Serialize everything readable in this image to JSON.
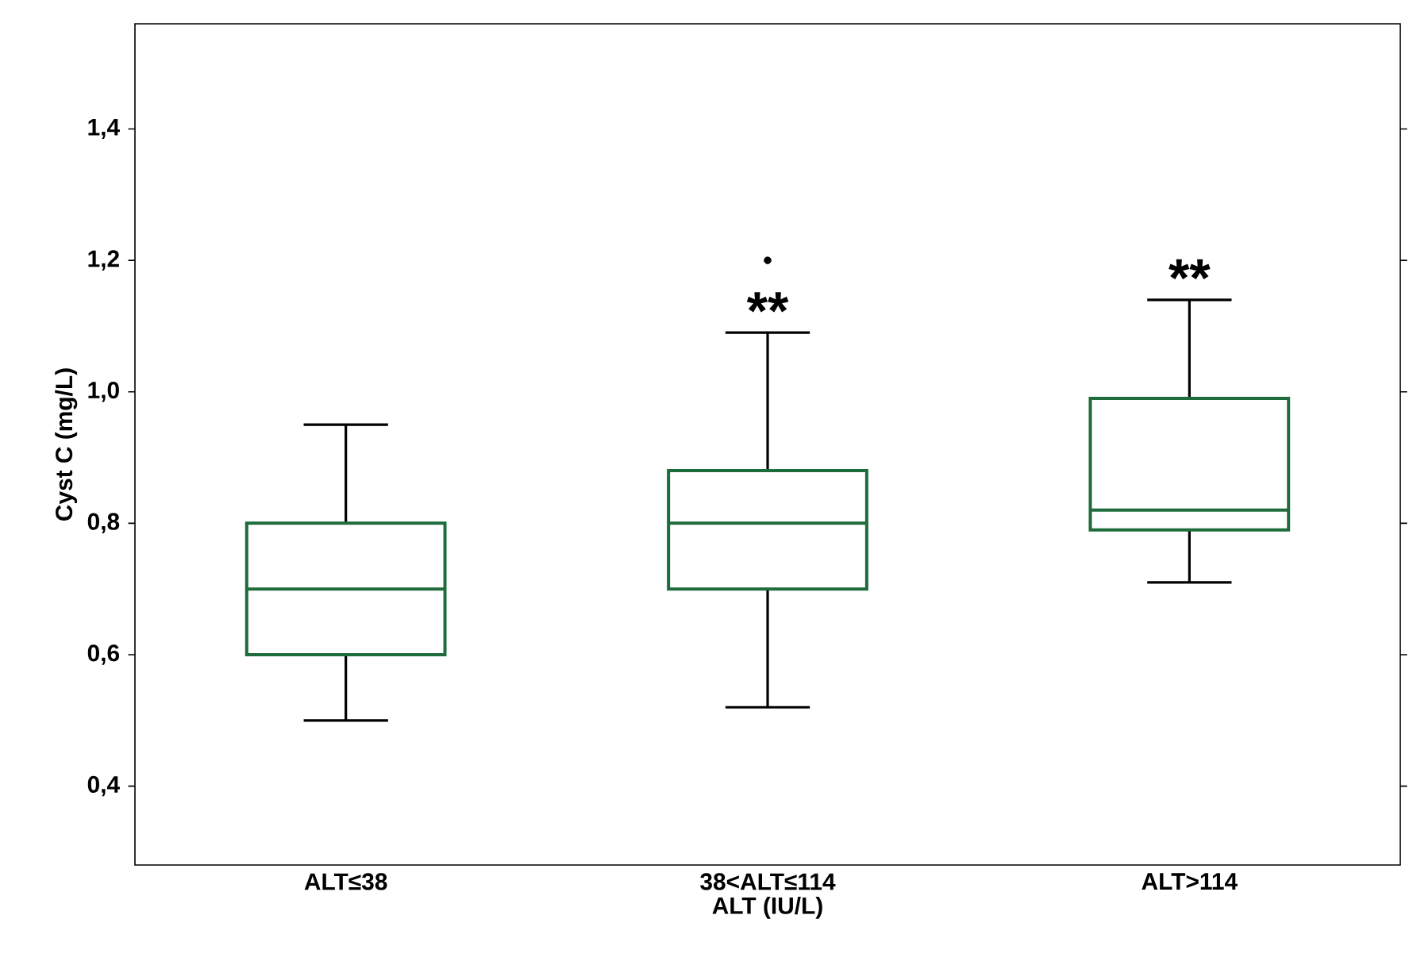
{
  "chart_data": {
    "type": "box",
    "xlabel": "ALT (IU/L)",
    "ylabel": "Cyst C (mg/L)",
    "categories": [
      "ALT≤38",
      "38<ALT≤114",
      "ALT>114"
    ],
    "color": "#1e6b3c",
    "boxes": [
      {
        "low": 0.5,
        "q1": 0.6,
        "median": 0.7,
        "q3": 0.8,
        "high": 0.95
      },
      {
        "low": 0.52,
        "q1": 0.7,
        "median": 0.8,
        "q3": 0.88,
        "high": 1.09,
        "outliers": [
          1.2
        ]
      },
      {
        "low": 0.71,
        "q1": 0.79,
        "median": 0.82,
        "q3": 0.99,
        "high": 1.14
      }
    ],
    "ylim": [
      0.28,
      1.56
    ],
    "yticks": [
      {
        "value": 0.4,
        "label": "0,4"
      },
      {
        "value": 0.6,
        "label": "0,6"
      },
      {
        "value": 0.8,
        "label": "0,8"
      },
      {
        "value": 1.0,
        "label": "1,0"
      },
      {
        "value": 1.2,
        "label": "1,2"
      },
      {
        "value": 1.4,
        "label": "1,4"
      }
    ],
    "grid": false,
    "annotations": [
      "**",
      "**"
    ]
  }
}
